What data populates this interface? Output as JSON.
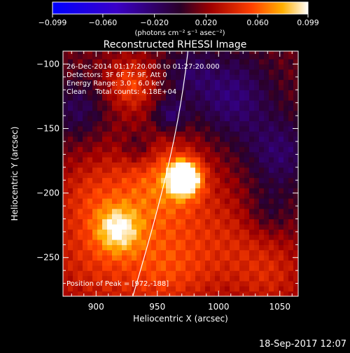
{
  "chart_data": {
    "type": "heatmap",
    "title": "Reconstructed RHESSI Image",
    "xlabel": "Heliocentric X (arcsec)",
    "ylabel": "Heliocentric Y (arcsec)",
    "xlim": [
      873,
      1065
    ],
    "ylim": [
      -280,
      -90
    ],
    "x_ticks": [
      900,
      950,
      1000,
      1050
    ],
    "y_ticks": [
      -100,
      -150,
      -200,
      -250
    ],
    "colorbar": {
      "range": [
        -0.099,
        0.099
      ],
      "ticks": [
        "-0.099",
        "-0.060",
        "-0.020",
        "0.020",
        "0.060",
        "0.099"
      ],
      "label": "(photons cm⁻² s⁻¹ asec⁻²)"
    },
    "annotations": [
      "26-Dec-2014 01:17:20.000 to 01:27:20.000",
      "Detectors: 3F 6F 7F 9F, Att 0",
      "Energy Range: 3.0 - 6.0 keV",
      "Clean    Total counts: 4.18E+04"
    ],
    "peak": {
      "label": "Position of Peak = [972,-188]",
      "x": 972,
      "y": -188,
      "value": 0.099
    },
    "sources": [
      {
        "x": 972,
        "y": -188,
        "sigma": 9,
        "amp": 0.11
      },
      {
        "x": 953,
        "y": -193,
        "sigma": 28,
        "amp": 0.045
      },
      {
        "x": 918,
        "y": -228,
        "sigma": 12,
        "amp": 0.05
      },
      {
        "x": 905,
        "y": -245,
        "sigma": 35,
        "amp": 0.035
      },
      {
        "x": 928,
        "y": -115,
        "sigma": 14,
        "amp": 0.04
      },
      {
        "x": 1010,
        "y": -240,
        "sigma": 30,
        "amp": 0.025
      },
      {
        "x": 960,
        "y": -262,
        "sigma": 24,
        "amp": 0.028
      },
      {
        "x": 895,
        "y": -200,
        "sigma": 20,
        "amp": 0.018
      },
      {
        "x": 1045,
        "y": -265,
        "sigma": 20,
        "amp": 0.02
      },
      {
        "x": 960,
        "y": -140,
        "sigma": 10,
        "amp": -0.035
      },
      {
        "x": 1010,
        "y": -125,
        "sigma": 24,
        "amp": -0.035
      },
      {
        "x": 1050,
        "y": -170,
        "sigma": 20,
        "amp": -0.03
      },
      {
        "x": 885,
        "y": -135,
        "sigma": 16,
        "amp": -0.025
      },
      {
        "x": 935,
        "y": -165,
        "sigma": 10,
        "amp": -0.025
      },
      {
        "x": 1040,
        "y": -215,
        "sigma": 14,
        "amp": -0.02
      },
      {
        "x": 975,
        "y": -105,
        "sigma": 14,
        "amp": -0.02
      }
    ],
    "limb": [
      [
        975,
        -90
      ],
      [
        968,
        -150
      ],
      [
        955,
        -200
      ],
      [
        930,
        -280
      ]
    ],
    "timestamp": "18-Sep-2017 12:07"
  }
}
